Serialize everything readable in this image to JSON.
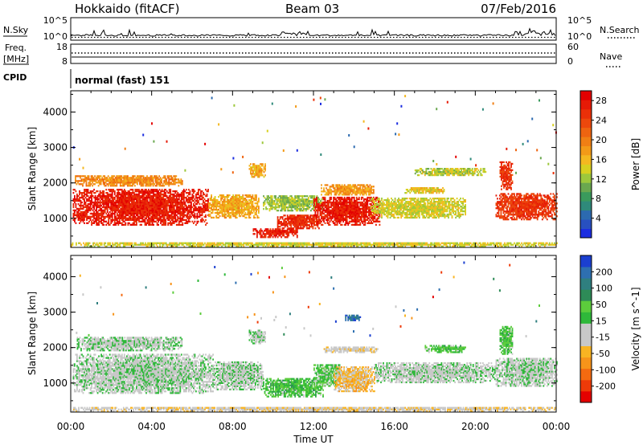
{
  "header": {
    "title": "Hokkaido (fitACF)",
    "beam": "Beam 03",
    "date": "07/Feb/2016"
  },
  "noise_panel": {
    "left_label": "N.Sky",
    "right_label": "N.Search",
    "left_ticks": [
      "10^5",
      "10^0"
    ],
    "right_ticks": [
      "10^5",
      "10^0"
    ]
  },
  "freq_panel": {
    "left_label_line1": "Freq.",
    "left_label_line2": "[MHz]",
    "left_ticks": [
      "18",
      "8"
    ],
    "right_label": "Nave",
    "right_ticks": [
      "60",
      "0"
    ]
  },
  "cpid_panel": {
    "label": "CPID",
    "text": "normal (fast) 151"
  },
  "colors": {
    "power_scale": [
      "#1b2de0",
      "#2850c0",
      "#2c6ab0",
      "#2f8a7a",
      "#3a9a5c",
      "#6aa84f",
      "#9dc83c",
      "#d8d020",
      "#f4b820",
      "#f39a18",
      "#f07f14",
      "#ee6410",
      "#ec480c",
      "#ea3008",
      "#e61a06",
      "#e40000"
    ],
    "velocity_scale": [
      "#e40000",
      "#ee3a08",
      "#f46a10",
      "#f7941a",
      "#f9b422",
      "#c8c8c8",
      "#c8c8c8",
      "#2fb83a",
      "#5ccc3c",
      "#2e8b57",
      "#2f7f7f",
      "#2e6fb0",
      "#1b3fd0"
    ]
  },
  "chart_data": [
    {
      "type": "heatmap",
      "name": "power",
      "xlabel": "",
      "ylabel": "Slant Range [km]",
      "x_ticks": [
        "00:00",
        "04:00",
        "08:00",
        "12:00",
        "16:00",
        "20:00",
        "00:00"
      ],
      "y_ticks": [
        "1000",
        "2000",
        "3000",
        "4000"
      ],
      "xlim_hours": [
        0,
        24
      ],
      "ylim_km": [
        180,
        4600
      ],
      "colorbar": {
        "label": "Power [dB]",
        "ticks": [
          "4",
          "8",
          "12",
          "16",
          "20",
          "24",
          "28"
        ],
        "range": [
          0,
          30
        ]
      },
      "blobs": [
        {
          "t0": 0.1,
          "t1": 6.8,
          "r0": 800,
          "r1": 1800,
          "value": 27
        },
        {
          "t0": 0.2,
          "t1": 5.5,
          "r0": 1900,
          "r1": 2200,
          "value": 19
        },
        {
          "t0": 6.8,
          "t1": 9.3,
          "r0": 1000,
          "r1": 1650,
          "value": 17
        },
        {
          "t0": 8.8,
          "t1": 9.6,
          "r0": 2150,
          "r1": 2550,
          "value": 17
        },
        {
          "t0": 9.5,
          "t1": 12.5,
          "r0": 1200,
          "r1": 1650,
          "value": 12
        },
        {
          "t0": 10.2,
          "t1": 12.3,
          "r0": 700,
          "r1": 1100,
          "value": 26
        },
        {
          "t0": 9.0,
          "t1": 11.2,
          "r0": 450,
          "r1": 720,
          "value": 27
        },
        {
          "t0": 12.0,
          "t1": 15.3,
          "r0": 800,
          "r1": 1600,
          "value": 27
        },
        {
          "t0": 12.3,
          "t1": 15.0,
          "r0": 1650,
          "r1": 1950,
          "value": 18
        },
        {
          "t0": 14.8,
          "t1": 19.5,
          "r0": 1000,
          "r1": 1550,
          "value": 14
        },
        {
          "t0": 16.5,
          "t1": 18.5,
          "r0": 1700,
          "r1": 1850,
          "value": 15
        },
        {
          "t0": 17.0,
          "t1": 20.5,
          "r0": 2200,
          "r1": 2400,
          "value": 13
        },
        {
          "t0": 21.0,
          "t1": 24.0,
          "r0": 950,
          "r1": 1700,
          "value": 25
        },
        {
          "t0": 21.2,
          "t1": 21.8,
          "r0": 1800,
          "r1": 2600,
          "value": 25
        },
        {
          "t0": 0.0,
          "t1": 24.0,
          "r0": 190,
          "r1": 320,
          "value": 14
        }
      ]
    },
    {
      "type": "heatmap",
      "name": "velocity",
      "xlabel": "Time UT",
      "ylabel": "Slant Range [km]",
      "x_ticks": [
        "00:00",
        "04:00",
        "08:00",
        "12:00",
        "16:00",
        "20:00",
        "00:00"
      ],
      "y_ticks": [
        "1000",
        "2000",
        "3000",
        "4000"
      ],
      "xlim_hours": [
        0,
        24
      ],
      "ylim_km": [
        180,
        4600
      ],
      "colorbar": {
        "label": "Velocity [m s^-1]",
        "ticks": [
          "200",
          "100",
          "50",
          "15",
          "-15",
          "-50",
          "-100",
          "-200"
        ],
        "range": [
          -250,
          250
        ]
      },
      "blobs": [
        {
          "t0": 0.1,
          "t1": 7.0,
          "r0": 700,
          "r1": 1800,
          "value": 0
        },
        {
          "t0": 7.0,
          "t1": 9.5,
          "r0": 800,
          "r1": 1600,
          "value": 0
        },
        {
          "t0": 0.3,
          "t1": 5.5,
          "r0": 1900,
          "r1": 2300,
          "value": 5
        },
        {
          "t0": 8.8,
          "t1": 9.6,
          "r0": 2100,
          "r1": 2500,
          "value": 5
        },
        {
          "t0": 9.5,
          "t1": 12.5,
          "r0": 600,
          "r1": 1100,
          "value": 60
        },
        {
          "t0": 12.0,
          "t1": 13.3,
          "r0": 900,
          "r1": 1500,
          "value": 45
        },
        {
          "t0": 13.0,
          "t1": 15.0,
          "r0": 750,
          "r1": 1450,
          "value": -70
        },
        {
          "t0": 12.5,
          "t1": 15.2,
          "r0": 1850,
          "r1": 2000,
          "value": -30
        },
        {
          "t0": 15.0,
          "t1": 21.0,
          "r0": 1000,
          "r1": 1550,
          "value": 0
        },
        {
          "t0": 17.5,
          "t1": 19.5,
          "r0": 1850,
          "r1": 2050,
          "value": 55
        },
        {
          "t0": 21.0,
          "t1": 24.0,
          "r0": 900,
          "r1": 1700,
          "value": 0
        },
        {
          "t0": 21.2,
          "t1": 21.8,
          "r0": 1800,
          "r1": 2600,
          "value": 55
        },
        {
          "t0": 13.5,
          "t1": 14.3,
          "r0": 2750,
          "r1": 2900,
          "value": 180
        },
        {
          "t0": 0.0,
          "t1": 24.0,
          "r0": 190,
          "r1": 320,
          "value": -40
        }
      ]
    }
  ]
}
